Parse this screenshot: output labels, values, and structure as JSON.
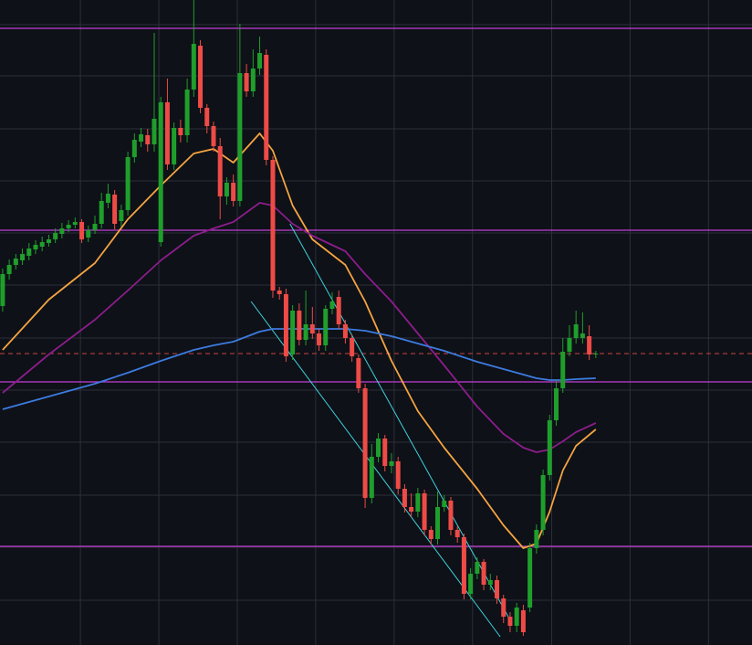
{
  "chart_data": {
    "type": "candlestick",
    "xlim": [
      -0.4,
      113.7
    ],
    "ylim": [
      0,
      706
    ],
    "xticks": [
      11.8,
      23.7,
      35.6,
      47.5,
      59.4,
      71.3,
      83.3,
      95.2,
      107.1
    ],
    "yticks": [
      49,
      107,
      164,
      222,
      279,
      336,
      394,
      451,
      508,
      565,
      623,
      679
    ],
    "grid": true,
    "background": "#0e1117",
    "grid_color": "#2c3038",
    "up_color": "#1f9e2c",
    "down_color": "#ee4b47",
    "candles": {
      "x": [
        0,
        1,
        2,
        3,
        4,
        5,
        6,
        7,
        8,
        9,
        10,
        11,
        12,
        13,
        14,
        15,
        16,
        17,
        18,
        19,
        20,
        21,
        22,
        23,
        24,
        25,
        26,
        27,
        28,
        29,
        30,
        31,
        32,
        33,
        34,
        35,
        36,
        37,
        38,
        39,
        40,
        41,
        42,
        43,
        44,
        45,
        46,
        47,
        48,
        49,
        50,
        51,
        52,
        53,
        54,
        55,
        56,
        57,
        58,
        59,
        60,
        61,
        62,
        63,
        64,
        65,
        66,
        67,
        68,
        69,
        70,
        71,
        72,
        73,
        74,
        75,
        76,
        77,
        78,
        79,
        80,
        81,
        82,
        83,
        84,
        85,
        86,
        87,
        88,
        89,
        90
      ],
      "open": [
        371,
        406,
        416,
        421,
        426,
        433,
        436,
        440,
        444,
        450,
        456,
        460,
        463,
        446,
        454,
        461,
        484,
        493,
        464,
        476,
        534,
        551,
        558,
        548,
        441,
        594,
        526,
        566,
        558,
        608,
        656,
        588,
        568,
        546,
        491,
        506,
        486,
        626,
        606,
        631,
        646,
        531,
        388,
        384,
        318,
        366,
        334,
        351,
        341,
        328,
        368,
        381,
        351,
        336,
        314,
        281,
        161,
        206,
        226,
        196,
        201,
        171,
        151,
        146,
        166,
        126,
        116,
        151,
        158,
        126,
        118,
        56,
        78,
        91,
        66,
        71,
        51,
        31,
        21,
        38,
        41,
        106,
        126,
        186,
        246,
        281,
        321,
        336,
        336,
        338,
        318
      ],
      "close": [
        406,
        416,
        423,
        428,
        434,
        438,
        441,
        444,
        451,
        456,
        460,
        463,
        444,
        454,
        461,
        486,
        494,
        461,
        476,
        534,
        553,
        559,
        548,
        576,
        594,
        526,
        566,
        558,
        608,
        658,
        588,
        568,
        546,
        491,
        506,
        486,
        626,
        606,
        631,
        648,
        531,
        388,
        384,
        316,
        366,
        334,
        351,
        341,
        328,
        368,
        376,
        351,
        336,
        316,
        281,
        161,
        206,
        226,
        196,
        201,
        171,
        151,
        146,
        166,
        126,
        116,
        151,
        158,
        126,
        118,
        56,
        78,
        91,
        66,
        71,
        51,
        31,
        21,
        41,
        14,
        106,
        126,
        186,
        246,
        281,
        321,
        336,
        351,
        341,
        318,
        319
      ],
      "high": [
        412,
        422,
        428,
        434,
        440,
        443,
        447,
        449,
        456,
        462,
        465,
        468,
        466,
        459,
        470,
        495,
        505,
        498,
        482,
        540,
        560,
        566,
        565,
        670,
        600,
        620,
        572,
        575,
        620,
        706,
        662,
        592,
        573,
        555,
        512,
        515,
        680,
        636,
        652,
        666,
        652,
        535,
        392,
        390,
        372,
        374,
        388,
        370,
        346,
        372,
        386,
        388,
        356,
        340,
        318,
        286,
        220,
        232,
        230,
        210,
        206,
        176,
        166,
        172,
        170,
        130,
        168,
        164,
        162,
        130,
        122,
        84,
        96,
        94,
        78,
        76,
        55,
        36,
        46,
        44,
        112,
        132,
        192,
        252,
        290,
        336,
        350,
        366,
        364,
        350,
        322
      ],
      "low": [
        365,
        400,
        411,
        416,
        421,
        428,
        431,
        436,
        440,
        445,
        452,
        456,
        440,
        441,
        450,
        456,
        478,
        455,
        458,
        470,
        528,
        545,
        540,
        540,
        436,
        520,
        520,
        550,
        550,
        600,
        582,
        560,
        540,
        466,
        482,
        480,
        480,
        600,
        600,
        624,
        525,
        380,
        378,
        310,
        312,
        328,
        328,
        335,
        322,
        322,
        362,
        346,
        330,
        310,
        276,
        150,
        155,
        200,
        190,
        188,
        165,
        145,
        140,
        140,
        120,
        110,
        110,
        146,
        120,
        112,
        50,
        50,
        72,
        60,
        60,
        45,
        24,
        14,
        14,
        10,
        36,
        100,
        120,
        180,
        240,
        276,
        316,
        330,
        330,
        312,
        314
      ]
    },
    "series": [
      {
        "color": "#f5a442",
        "x": [
          0,
          7,
          14,
          19,
          24,
          29,
          32,
          35,
          39,
          41,
          44,
          47,
          52,
          55,
          59,
          63,
          67,
          72,
          76,
          79,
          81,
          83,
          85,
          87,
          90
        ],
        "values": [
          323,
          378,
          418,
          466,
          503,
          538,
          543,
          528,
          560,
          541,
          481,
          444,
          416,
          376,
          311,
          256,
          216,
          171,
          131,
          106,
          111,
          146,
          191,
          218,
          236
        ]
      },
      {
        "color": "#8c1d8c",
        "x": [
          0,
          7,
          14,
          19,
          24,
          29,
          32,
          35,
          39,
          41,
          44,
          47,
          52,
          55,
          59,
          63,
          67,
          72,
          76,
          79,
          81,
          83,
          85,
          87,
          90
        ],
        "values": [
          276,
          318,
          356,
          388,
          421,
          448,
          456,
          463,
          484,
          481,
          461,
          448,
          431,
          406,
          376,
          341,
          306,
          261,
          231,
          216,
          211,
          214,
          223,
          233,
          243
        ]
      },
      {
        "color": "#3c7be0",
        "x": [
          0,
          7,
          14,
          19,
          24,
          29,
          32,
          35,
          39,
          41,
          44,
          47,
          52,
          55,
          59,
          63,
          67,
          72,
          76,
          79,
          81,
          83,
          85,
          87,
          90
        ],
        "values": [
          258,
          272,
          286,
          298,
          311,
          323,
          328,
          332,
          343,
          346,
          346,
          346,
          346,
          344,
          338,
          330,
          322,
          310,
          302,
          296,
          292,
          290,
          290,
          291,
          292
        ]
      }
    ],
    "levels": [
      675,
      454,
      288,
      108
    ],
    "level_color": "#c23fd8",
    "last_price": 319,
    "last_price_color": "#c94444",
    "trendlines": [
      {
        "x": [
          37.7,
          75.5
        ],
        "values": [
          376,
          9
        ]
      },
      {
        "x": [
          43.6,
          77.1
        ],
        "values": [
          461,
          26
        ]
      }
    ],
    "trendline_color": "#3fd3df"
  }
}
